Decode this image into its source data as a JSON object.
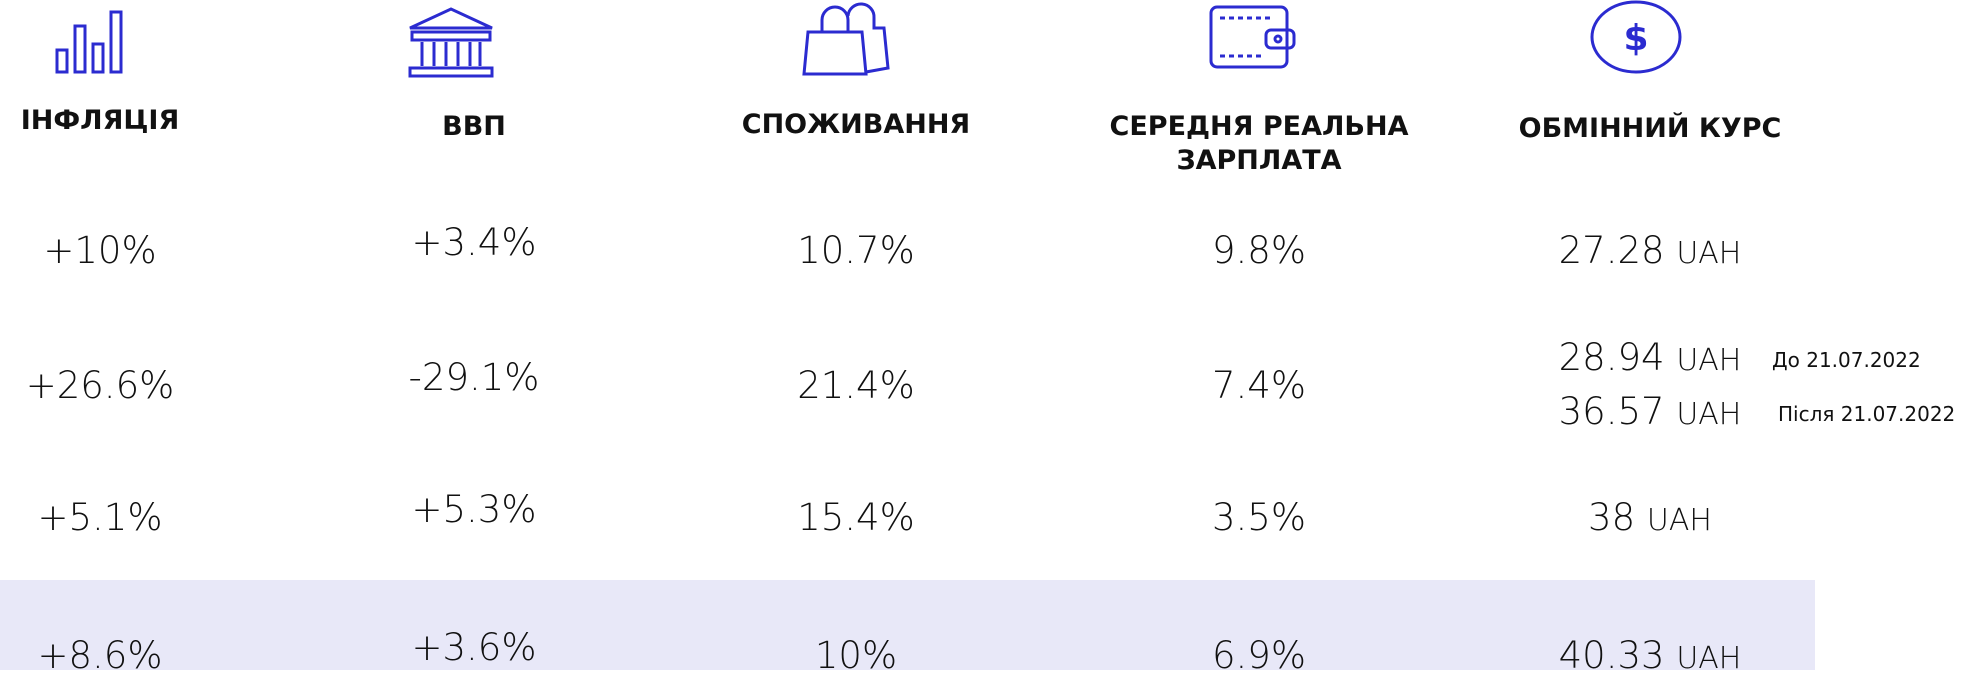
{
  "table": {
    "headers": [
      "ІНФЛЯЦІЯ",
      "ВВП",
      "СПОЖИВАННЯ",
      "СЕРЕДНЯ РЕАЛЬНА ЗАРПЛАТА",
      "ОБМІННИЙ КУРС"
    ],
    "rows": [
      [
        "+10%",
        "+3.4%",
        "10.7%",
        "9.8%",
        [
          {
            "amount": "27.28",
            "currency": "UAH"
          }
        ]
      ],
      [
        "+26.6%",
        "-29.1%",
        "21.4%",
        "7.4%",
        [
          {
            "amount": "28.94",
            "currency": "UAH",
            "note": "До 21.07.2022"
          },
          {
            "amount": "36.57",
            "currency": "UAH",
            "note": "Після 21.07.2022"
          }
        ]
      ],
      [
        "+5.1%",
        "+5.3%",
        "15.4%",
        "3.5%",
        [
          {
            "amount": "38",
            "currency": "UAH"
          }
        ]
      ],
      [
        "+8.6%",
        "+3.6%",
        "10%",
        "6.9%",
        [
          {
            "amount": "40.33",
            "currency": "UAH"
          }
        ]
      ]
    ]
  }
}
